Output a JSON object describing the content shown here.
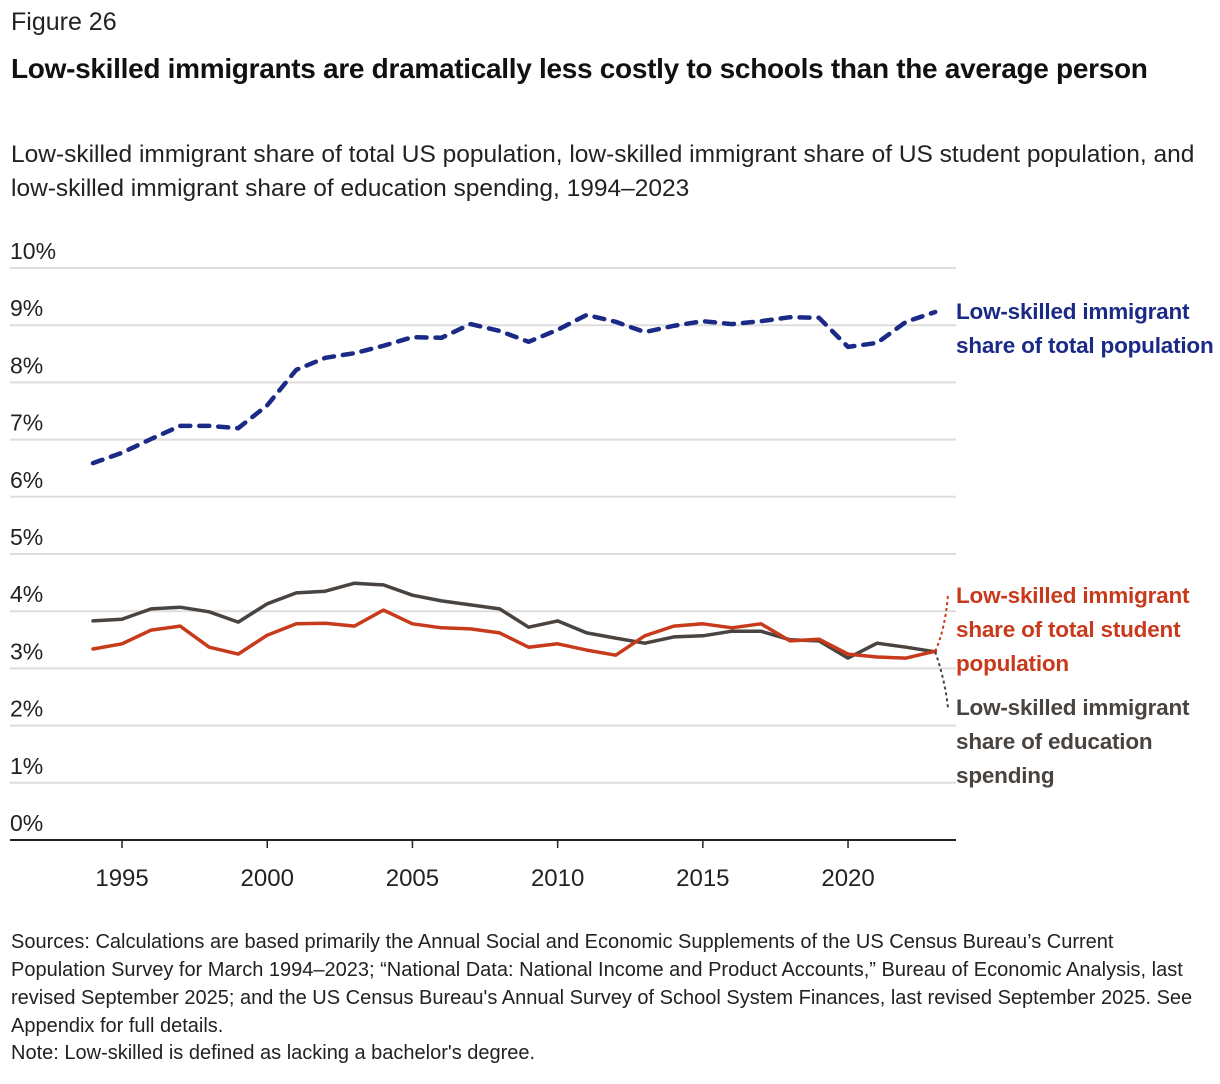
{
  "figure_label": "Figure 26",
  "colors": {
    "total_population": "#1b2a86",
    "student_population": "#c83a1c",
    "education_spending": "#4a4440",
    "grid": "#dddddd"
  },
  "sources": "Sources: Calculations are based primarily the Annual Social and Economic Supplements of the US Census Bureau’s Current Population Survey for March 1994–2023; “National Data: National Income and Product Accounts,” Bureau of Economic Analysis, last revised September 2025; and the US Census Bureau's Annual Survey of School System Finances, last revised September 2025. See Appendix for full details.",
  "note": "Note: Low-skilled is defined as lacking a bachelor's degree.",
  "chart_data": {
    "type": "line",
    "title": "Low-skilled immigrants are dramatically less costly to schools than the average person",
    "subtitle": "Low-skilled immigrant share of total US population, low-skilled immigrant share of US student population, and low-skilled immigrant share of education spending, 1994–2023",
    "xlabel": "",
    "ylabel": "",
    "xlim": [
      1994,
      2023
    ],
    "ylim": [
      0,
      10
    ],
    "grid": true,
    "legend": "direct labels right",
    "x_ticks": [
      "1995",
      "2000",
      "2005",
      "2010",
      "2015",
      "2020"
    ],
    "y_ticks": [
      "0%",
      "1%",
      "2%",
      "3%",
      "4%",
      "5%",
      "6%",
      "7%",
      "8%",
      "9%",
      "10%"
    ],
    "x": [
      1994,
      1995,
      1996,
      1997,
      1998,
      1999,
      2000,
      2001,
      2002,
      2003,
      2004,
      2005,
      2006,
      2007,
      2008,
      2009,
      2010,
      2011,
      2012,
      2013,
      2014,
      2015,
      2016,
      2017,
      2018,
      2019,
      2020,
      2021,
      2022,
      2023
    ],
    "series": [
      {
        "name": "Low-skilled immigrant share of total population",
        "style": "dashed",
        "values": [
          6.59,
          6.77,
          7.01,
          7.24,
          7.24,
          7.2,
          7.6,
          8.22,
          8.43,
          8.51,
          8.64,
          8.79,
          8.78,
          9.02,
          8.9,
          8.71,
          8.92,
          9.18,
          9.06,
          8.88,
          8.99,
          9.07,
          9.02,
          9.07,
          9.14,
          9.13,
          8.62,
          8.69,
          9.06,
          9.23
        ]
      },
      {
        "name": "Low-skilled immigrant share of total student population",
        "style": "solid",
        "values": [
          3.34,
          3.43,
          3.67,
          3.74,
          3.37,
          3.25,
          3.58,
          3.78,
          3.79,
          3.74,
          4.02,
          3.78,
          3.71,
          3.69,
          3.62,
          3.37,
          3.43,
          3.32,
          3.23,
          3.57,
          3.74,
          3.78,
          3.71,
          3.78,
          3.48,
          3.51,
          3.25,
          3.2,
          3.18,
          3.3
        ]
      },
      {
        "name": "Low-skilled immigrant share of education spending",
        "style": "solid",
        "values": [
          3.83,
          3.86,
          4.04,
          4.07,
          3.99,
          3.81,
          4.13,
          4.32,
          4.35,
          4.49,
          4.46,
          4.28,
          4.18,
          4.11,
          4.04,
          3.72,
          3.83,
          3.62,
          3.53,
          3.44,
          3.55,
          3.57,
          3.65,
          3.65,
          3.5,
          3.48,
          3.18,
          3.44,
          3.37,
          3.29
        ]
      }
    ]
  }
}
